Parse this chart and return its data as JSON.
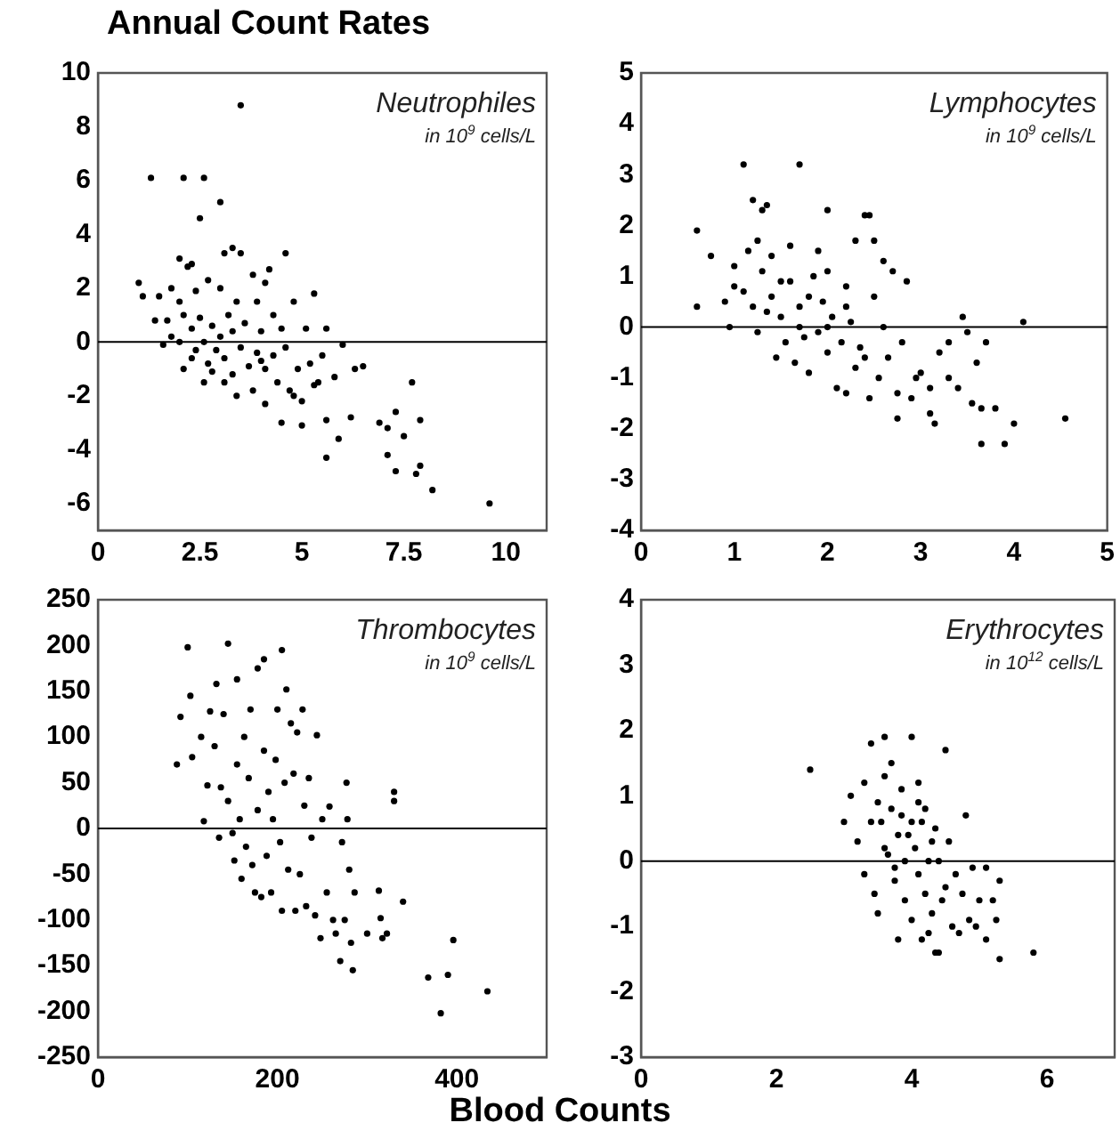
{
  "chart_data": [
    {
      "type": "scatter",
      "title": "Annual Count Rates",
      "annotations": [
        "Neutrophiles",
        "in 10$^{9}$ cells/L"
      ],
      "xlim": [
        0,
        11
      ],
      "xticks": [
        0,
        2.5,
        5,
        7.5,
        10
      ],
      "ylim": [
        -7,
        10
      ],
      "yticks": [
        -6,
        -4,
        -2,
        0,
        2,
        4,
        6,
        8,
        10
      ],
      "grid": false,
      "marker": "circle",
      "ref_lines": [
        {
          "axis": "y",
          "value": 0,
          "color": "#000000"
        }
      ],
      "series": [
        {
          "color": "#000000",
          "x": [
            3.5,
            1.3,
            2.1,
            2.6,
            3.0,
            2.5,
            1.0,
            1.1,
            1.5,
            1.4,
            2.0,
            2.2,
            2.3,
            3.1,
            3.3,
            3.5,
            4.6,
            4.2,
            3.8,
            4.1,
            4.8,
            5.3,
            1.8,
            2.0,
            2.4,
            2.7,
            3.0,
            3.4,
            3.9,
            4.3,
            4.5,
            5.1,
            5.6,
            6.0,
            1.7,
            1.8,
            2.1,
            2.3,
            2.5,
            2.6,
            2.8,
            2.9,
            3.0,
            3.1,
            3.2,
            3.3,
            3.5,
            3.6,
            3.7,
            3.9,
            4.0,
            4.1,
            4.3,
            4.4,
            4.6,
            4.7,
            4.9,
            5.0,
            5.2,
            5.4,
            5.5,
            5.6,
            5.8,
            6.3,
            6.5,
            6.2,
            5.9,
            5.6,
            5.0,
            4.5,
            4.1,
            3.4,
            2.1,
            2.6,
            3.1,
            2.3,
            2.8,
            6.9,
            7.1,
            7.3,
            7.5,
            7.7,
            7.9,
            7.1,
            7.3,
            7.8,
            7.9,
            8.2,
            9.6,
            1.6,
            2.0,
            2.4,
            2.7,
            3.3,
            3.8,
            4.0,
            4.8,
            5.3
          ],
          "values": [
            8.8,
            6.1,
            6.1,
            6.1,
            5.2,
            4.6,
            2.2,
            1.7,
            1.7,
            0.8,
            3.1,
            2.8,
            2.9,
            3.3,
            3.5,
            3.3,
            3.3,
            2.7,
            2.5,
            2.2,
            1.5,
            1.8,
            2.0,
            1.5,
            1.9,
            2.3,
            2.0,
            1.5,
            1.5,
            1.0,
            0.5,
            0.5,
            0.5,
            -0.1,
            0.8,
            0.2,
            1.0,
            0.5,
            0.9,
            0.0,
            0.6,
            -0.3,
            0.2,
            -0.6,
            1.0,
            0.4,
            -0.2,
            0.7,
            -0.9,
            -0.4,
            0.4,
            -1.0,
            -0.5,
            -1.5,
            -0.2,
            -1.8,
            -1.0,
            -2.2,
            -0.8,
            -1.5,
            -0.5,
            -2.9,
            -1.3,
            -1.0,
            -0.9,
            -2.8,
            -3.6,
            -4.3,
            -3.1,
            -3.0,
            -2.3,
            -2.0,
            -1.0,
            -1.5,
            -1.5,
            -0.6,
            -1.1,
            -3.0,
            -3.2,
            -2.6,
            -3.5,
            -1.5,
            -2.9,
            -4.2,
            -4.8,
            -4.9,
            -4.6,
            -5.5,
            -6.0,
            -0.1,
            0.0,
            -0.3,
            -0.8,
            -1.2,
            -1.8,
            -0.7,
            -2.0,
            -1.6
          ]
        }
      ]
    },
    {
      "type": "scatter",
      "annotations": [
        "Lymphocytes",
        "in 10$^{9}$ cells/L"
      ],
      "xlim": [
        0,
        5
      ],
      "xticks": [
        0,
        1,
        2,
        3,
        4,
        5
      ],
      "ylim": [
        -4,
        5
      ],
      "yticks": [
        -4,
        -3,
        -2,
        -1,
        0,
        1,
        2,
        3,
        4,
        5
      ],
      "grid": false,
      "marker": "circle",
      "ref_lines": [
        {
          "axis": "y",
          "value": 0,
          "color": "#000000"
        }
      ],
      "series": [
        {
          "color": "#000000",
          "x": [
            0.6,
            0.6,
            0.75,
            0.9,
            1.0,
            1.0,
            0.95,
            1.1,
            1.1,
            1.15,
            1.2,
            1.25,
            1.3,
            1.35,
            1.2,
            1.25,
            1.3,
            1.4,
            1.4,
            1.45,
            1.5,
            1.55,
            1.6,
            1.6,
            1.65,
            1.7,
            1.7,
            1.75,
            1.8,
            1.8,
            1.85,
            1.9,
            1.9,
            1.95,
            2.0,
            2.0,
            2.0,
            2.05,
            2.1,
            2.15,
            2.2,
            2.2,
            2.25,
            2.3,
            2.3,
            2.35,
            2.4,
            2.45,
            2.45,
            2.5,
            2.5,
            2.55,
            2.6,
            2.6,
            2.65,
            2.7,
            2.75,
            2.75,
            2.8,
            2.85,
            2.9,
            2.95,
            3.0,
            3.1,
            3.1,
            3.15,
            3.2,
            3.3,
            3.3,
            3.45,
            3.5,
            3.4,
            3.55,
            3.6,
            3.65,
            3.65,
            3.7,
            3.8,
            3.9,
            4.0,
            4.1,
            4.55,
            1.5,
            1.7,
            2.0,
            2.2,
            1.35,
            2.4
          ],
          "values": [
            1.9,
            0.4,
            1.4,
            0.5,
            1.2,
            0.8,
            0.0,
            3.2,
            0.7,
            1.5,
            2.5,
            1.7,
            2.3,
            2.4,
            0.4,
            -0.1,
            1.1,
            1.4,
            0.6,
            -0.6,
            0.2,
            -0.3,
            1.6,
            0.9,
            -0.7,
            3.2,
            0.4,
            -0.2,
            -0.9,
            0.6,
            1.0,
            1.5,
            -0.1,
            0.5,
            2.3,
            1.1,
            -0.5,
            0.2,
            -1.2,
            -0.3,
            -1.3,
            0.8,
            0.1,
            1.7,
            -0.8,
            -0.4,
            2.2,
            2.2,
            -1.4,
            1.7,
            0.6,
            -1.0,
            1.3,
            0.0,
            -0.6,
            1.1,
            -1.3,
            -1.8,
            -0.3,
            0.9,
            -1.4,
            -1.0,
            -0.9,
            -1.2,
            -1.7,
            -1.9,
            -0.5,
            -0.3,
            -1.0,
            0.2,
            -0.1,
            -1.2,
            -1.5,
            -0.7,
            -1.6,
            -2.3,
            -0.3,
            -1.6,
            -2.3,
            -1.9,
            0.1,
            -1.8,
            0.9,
            0.0,
            0.0,
            0.4,
            0.3,
            -0.6
          ]
        }
      ]
    },
    {
      "type": "scatter",
      "annotations": [
        "Thrombocytes",
        "in 10$^{9}$ cells/L"
      ],
      "xlabel": "Blood Counts",
      "xlim": [
        0,
        500
      ],
      "xticks": [
        0,
        200,
        400
      ],
      "ylim": [
        -250,
        250
      ],
      "yticks": [
        -250,
        -200,
        -150,
        -100,
        -50,
        0,
        50,
        100,
        150,
        200,
        250
      ],
      "grid": false,
      "marker": "circle",
      "ref_lines": [
        {
          "axis": "y",
          "value": 0,
          "color": "#000000"
        }
      ],
      "series": [
        {
          "color": "#000000",
          "x": [
            88,
            92,
            100,
            103,
            105,
            115,
            118,
            122,
            125,
            130,
            132,
            135,
            137,
            140,
            145,
            145,
            150,
            152,
            155,
            155,
            158,
            160,
            163,
            165,
            168,
            170,
            172,
            175,
            178,
            178,
            182,
            185,
            185,
            188,
            190,
            193,
            195,
            198,
            200,
            203,
            205,
            205,
            208,
            210,
            212,
            215,
            218,
            220,
            222,
            225,
            228,
            230,
            232,
            235,
            238,
            242,
            244,
            248,
            250,
            255,
            258,
            262,
            265,
            270,
            272,
            275,
            277,
            278,
            280,
            282,
            284,
            286,
            300,
            313,
            315,
            317,
            322,
            330,
            330,
            340,
            368,
            382,
            390,
            396,
            434
          ],
          "values": [
            70,
            122,
            198,
            145,
            78,
            100,
            8,
            47,
            128,
            90,
            158,
            -10,
            45,
            125,
            202,
            30,
            -5,
            -35,
            163,
            70,
            10,
            -55,
            100,
            -20,
            55,
            130,
            -40,
            -70,
            175,
            20,
            -75,
            185,
            85,
            -30,
            40,
            -70,
            10,
            75,
            130,
            -15,
            195,
            -90,
            50,
            152,
            -45,
            115,
            60,
            -90,
            105,
            -50,
            130,
            25,
            -85,
            55,
            -10,
            -95,
            102,
            -120,
            10,
            -70,
            24,
            -100,
            -115,
            -145,
            -15,
            -100,
            50,
            10,
            -45,
            -125,
            -155,
            -70,
            -115,
            -68,
            -98,
            -120,
            -115,
            40,
            30,
            -80,
            -163,
            -202,
            -160,
            -122,
            -178
          ]
        }
      ]
    },
    {
      "type": "scatter",
      "annotations": [
        "Erythrocytes",
        "in 10$^{12}$ cells/L"
      ],
      "xlim": [
        0,
        7
      ],
      "xticks": [
        0,
        2,
        4,
        6
      ],
      "ylim": [
        -3,
        4
      ],
      "yticks": [
        -3,
        -2,
        -1,
        0,
        1,
        2,
        3,
        4
      ],
      "grid": false,
      "marker": "circle",
      "ref_lines": [
        {
          "axis": "y",
          "value": 0,
          "color": "#000000"
        }
      ],
      "series": [
        {
          "color": "#000000",
          "x": [
            2.5,
            3.0,
            3.1,
            3.2,
            3.3,
            3.3,
            3.4,
            3.4,
            3.45,
            3.5,
            3.6,
            3.6,
            3.6,
            3.7,
            3.7,
            3.75,
            3.8,
            3.8,
            3.85,
            3.9,
            3.9,
            4.0,
            4.0,
            4.0,
            4.1,
            4.1,
            4.15,
            4.2,
            4.2,
            4.25,
            4.3,
            4.3,
            4.35,
            4.4,
            4.4,
            4.5,
            4.5,
            4.55,
            4.6,
            4.65,
            4.7,
            4.75,
            4.8,
            4.85,
            4.9,
            4.95,
            5.0,
            5.1,
            5.1,
            5.2,
            5.25,
            5.3,
            5.3,
            5.8,
            3.55,
            3.65,
            3.95,
            4.05,
            4.15,
            3.85,
            4.25,
            4.45,
            3.5,
            3.75,
            4.1,
            4.35
          ],
          "values": [
            1.4,
            0.6,
            1.0,
            0.3,
            1.2,
            -0.2,
            1.8,
            0.6,
            -0.5,
            -0.8,
            1.9,
            1.3,
            0.2,
            1.5,
            0.8,
            -0.3,
            -1.2,
            0.4,
            1.1,
            -0.6,
            0.0,
            1.9,
            0.6,
            -0.9,
            1.2,
            -0.2,
            -1.2,
            0.8,
            -0.5,
            -1.1,
            0.3,
            -0.8,
            -1.4,
            0.0,
            -1.4,
            1.7,
            -0.4,
            0.3,
            -1.0,
            -0.2,
            -1.1,
            -0.5,
            0.7,
            -0.9,
            -0.1,
            -1.0,
            -0.6,
            -1.2,
            -0.1,
            -0.6,
            -0.9,
            -1.5,
            -0.3,
            -1.4,
            0.6,
            0.1,
            0.4,
            0.2,
            0.6,
            0.7,
            0.0,
            -0.6,
            0.9,
            -0.1,
            0.9,
            0.5
          ]
        }
      ]
    }
  ]
}
